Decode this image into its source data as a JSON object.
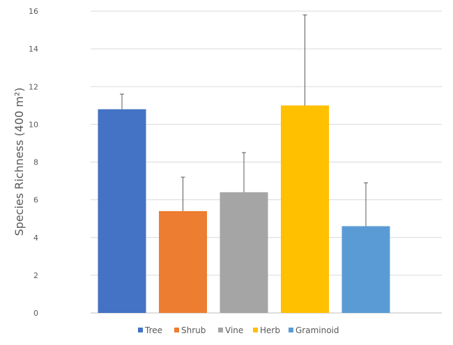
{
  "chart_data": {
    "type": "bar",
    "categories": [
      "Tree",
      "Shrub",
      "Vine",
      "Herb",
      "Graminoid"
    ],
    "values": [
      10.8,
      5.4,
      6.4,
      11.0,
      4.6
    ],
    "error_upper": [
      11.6,
      7.2,
      8.5,
      15.8,
      6.9
    ],
    "colors": [
      "#4472C4",
      "#ED7D31",
      "#A5A5A5",
      "#FFC000",
      "#5B9BD5"
    ],
    "title": "",
    "xlabel": "",
    "ylabel": "Species Richness (400 m²)",
    "ylim": [
      0,
      16
    ],
    "yticks": [
      "0",
      "2",
      "4",
      "6",
      "8",
      "10",
      "12",
      "14",
      "16"
    ],
    "grid": true,
    "legend": "bottom",
    "legend_entries": [
      "Tree",
      "Shrub",
      "Vine",
      "Herb",
      "Graminoid"
    ]
  }
}
